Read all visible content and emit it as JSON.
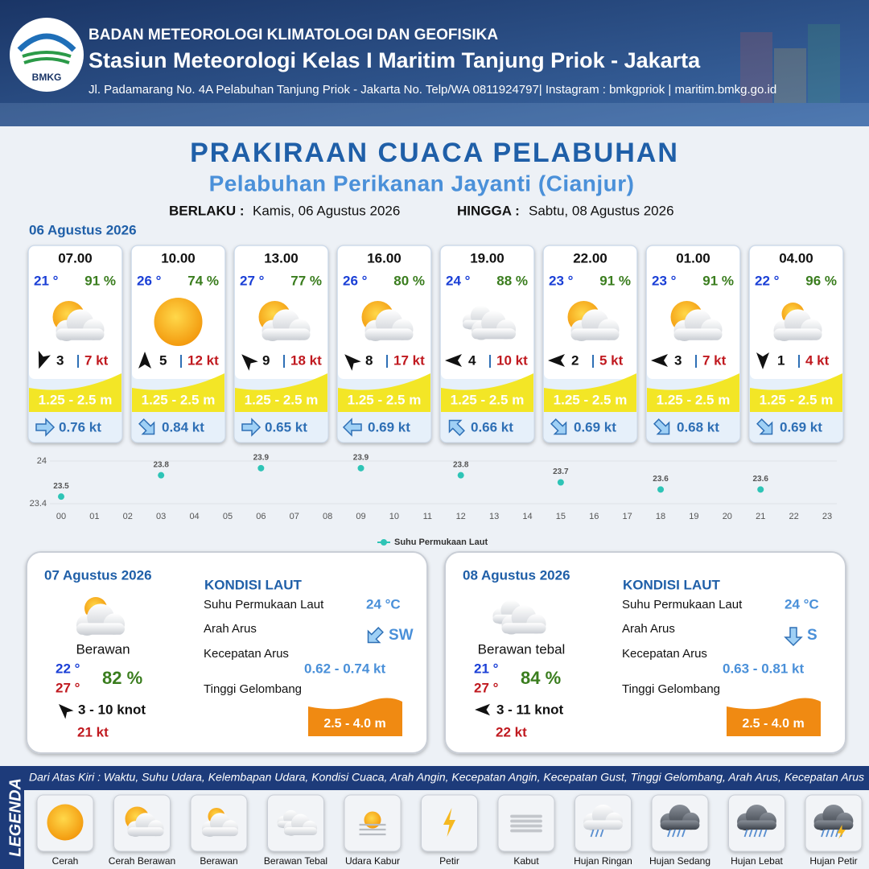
{
  "header": {
    "agency": "BADAN METEOROLOGI KLIMATOLOGI DAN GEOFISIKA",
    "station": "Stasiun Meteorologi Kelas I Maritim Tanjung Priok - Jakarta",
    "address": "Jl. Padamarang No. 4A Pelabuhan Tanjung Priok - Jakarta No. Telp/WA 0811924797| Instagram : bmkgpriok | maritim.bmkg.go.id",
    "logo_text": "BMKG"
  },
  "title": "PRAKIRAAN CUACA PELABUHAN",
  "subtitle": "Pelabuhan Perikanan Jayanti (Cianjur)",
  "validity": {
    "from_label": "BERLAKU :",
    "from": "Kamis, 06 Agustus 2026",
    "to_label": "HINGGA :",
    "to": "Sabtu, 08 Agustus 2026"
  },
  "today": {
    "date": "06 Agustus 2026",
    "forecasts": [
      {
        "time": "07.00",
        "temp": "21 °",
        "humidity": "91 %",
        "wind": "3",
        "gust": "7 kt",
        "wave": "1.25 - 2.5 m",
        "current": "0.76 kt"
      },
      {
        "time": "10.00",
        "temp": "26 °",
        "humidity": "74 %",
        "wind": "5",
        "gust": "12 kt",
        "wave": "1.25 - 2.5 m",
        "current": "0.84 kt"
      },
      {
        "time": "13.00",
        "temp": "27 °",
        "humidity": "77 %",
        "wind": "9",
        "gust": "18 kt",
        "wave": "1.25 - 2.5 m",
        "current": "0.65 kt"
      },
      {
        "time": "16.00",
        "temp": "26 °",
        "humidity": "80 %",
        "wind": "8",
        "gust": "17 kt",
        "wave": "1.25 - 2.5 m",
        "current": "0.69 kt"
      },
      {
        "time": "19.00",
        "temp": "24 °",
        "humidity": "88 %",
        "wind": "4",
        "gust": "10 kt",
        "wave": "1.25 - 2.5 m",
        "current": "0.66 kt"
      },
      {
        "time": "22.00",
        "temp": "23 °",
        "humidity": "91 %",
        "wind": "2",
        "gust": "5 kt",
        "wave": "1.25 - 2.5 m",
        "current": "0.69 kt"
      },
      {
        "time": "01.00",
        "temp": "23 °",
        "humidity": "91 %",
        "wind": "3",
        "gust": "7 kt",
        "wave": "1.25 - 2.5 m",
        "current": "0.68 kt"
      },
      {
        "time": "04.00",
        "temp": "22 °",
        "humidity": "96 %",
        "wind": "1",
        "gust": "4 kt",
        "wave": "1.25 - 2.5 m",
        "current": "0.69 kt"
      }
    ]
  },
  "chart_data": {
    "type": "line",
    "categories": [
      "00",
      "01",
      "02",
      "03",
      "04",
      "05",
      "06",
      "07",
      "08",
      "09",
      "10",
      "11",
      "12",
      "13",
      "14",
      "15",
      "16",
      "17",
      "18",
      "19",
      "20",
      "21",
      "22",
      "23"
    ],
    "series": [
      {
        "name": "Suhu Permukaan Laut",
        "color": "#2ec4b6",
        "values": [
          23.5,
          null,
          null,
          23.8,
          null,
          null,
          23.9,
          null,
          null,
          23.9,
          null,
          null,
          23.8,
          null,
          null,
          23.7,
          null,
          null,
          23.6,
          null,
          null,
          23.6,
          null,
          null
        ]
      }
    ],
    "ylim": [
      23.4,
      24
    ],
    "yticks": [
      23.4,
      24
    ],
    "grid": true
  },
  "outlook": [
    {
      "date": "07 Agustus 2026",
      "condition": "Berawan",
      "temp_min": "22 °",
      "temp_max": "27 °",
      "humidity": "82 %",
      "wind": "3 - 10 knot",
      "gust": "21 kt",
      "sea": {
        "title": "KONDISI LAUT",
        "sst_label": "Suhu Permukaan Laut",
        "sst": "24 °C",
        "dir_label": "Arah Arus",
        "dir": "SW",
        "speed_label": "Kecepatan Arus",
        "speed": "0.62 - 0.74 kt",
        "wave_label": "Tinggi Gelombang",
        "wave": "2.5 - 4.0 m"
      }
    },
    {
      "date": "08 Agustus 2026",
      "condition": "Berawan tebal",
      "temp_min": "21 °",
      "temp_max": "27 °",
      "humidity": "84 %",
      "wind": "3 - 11 knot",
      "gust": "22 kt",
      "sea": {
        "title": "KONDISI LAUT",
        "sst_label": "Suhu Permukaan Laut",
        "sst": "24 °C",
        "dir_label": "Arah Arus",
        "dir": "S",
        "speed_label": "Kecepatan Arus",
        "speed": "0.63 - 0.81 kt",
        "wave_label": "Tinggi Gelombang",
        "wave": "2.5 - 4.0 m"
      }
    }
  ],
  "legend": {
    "title": "LEGENDA",
    "description": "Dari Atas Kiri : Waktu, Suhu Udara, Kelembapan Udara, Kondisi Cuaca, Arah Angin, Kecepatan Angin, Kecepatan Gust, Tinggi Gelombang, Arah Arus, Kecepatan Arus",
    "items": [
      "Cerah",
      "Cerah Berawan",
      "Berawan",
      "Berawan Tebal",
      "Udara Kabur",
      "Petir",
      "Kabut",
      "Hujan Ringan",
      "Hujan Sedang",
      "Hujan Lebat",
      "Hujan Petir"
    ]
  }
}
